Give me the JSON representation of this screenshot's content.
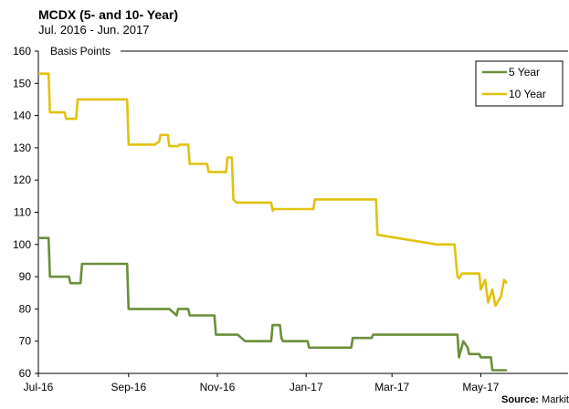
{
  "chart_data": {
    "type": "line",
    "title": "MCDX (5- and 10- Year)",
    "subtitle": "Jul. 2016 - Jun. 2017",
    "ylabel": "Basis Points",
    "xlabel": "",
    "ylim": [
      60,
      160
    ],
    "yticks": [
      60,
      70,
      80,
      90,
      100,
      110,
      120,
      130,
      140,
      150,
      160
    ],
    "xlim": [
      "2016-07-01",
      "2017-06-30"
    ],
    "xticks": [
      {
        "date": "2016-07-01",
        "label": "Jul-16"
      },
      {
        "date": "2016-09-01",
        "label": "Sep-16"
      },
      {
        "date": "2016-11-01",
        "label": "Nov-16"
      },
      {
        "date": "2017-01-01",
        "label": "Jan-17"
      },
      {
        "date": "2017-03-01",
        "label": "Mar-17"
      },
      {
        "date": "2017-05-01",
        "label": "May-17"
      }
    ],
    "grid": false,
    "legend_position": "top-right",
    "series": [
      {
        "name": "5 Year",
        "color": "#6b8e3a",
        "points": [
          [
            "2016-07-01",
            102
          ],
          [
            "2016-07-08",
            102
          ],
          [
            "2016-07-09",
            90
          ],
          [
            "2016-07-22",
            90
          ],
          [
            "2016-07-23",
            88
          ],
          [
            "2016-07-30",
            88
          ],
          [
            "2016-07-31",
            94
          ],
          [
            "2016-08-31",
            94
          ],
          [
            "2016-09-01",
            80
          ],
          [
            "2016-09-29",
            80
          ],
          [
            "2016-10-04",
            78
          ],
          [
            "2016-10-05",
            80
          ],
          [
            "2016-10-12",
            80
          ],
          [
            "2016-10-13",
            78
          ],
          [
            "2016-10-30",
            78
          ],
          [
            "2016-10-31",
            72
          ],
          [
            "2016-11-15",
            72
          ],
          [
            "2016-11-20",
            70
          ],
          [
            "2016-12-08",
            70
          ],
          [
            "2016-12-09",
            75
          ],
          [
            "2016-12-14",
            75
          ],
          [
            "2016-12-15",
            71
          ],
          [
            "2016-12-16",
            70
          ],
          [
            "2017-01-02",
            70
          ],
          [
            "2017-01-03",
            68
          ],
          [
            "2017-01-05",
            68
          ],
          [
            "2017-01-06",
            68
          ],
          [
            "2017-02-01",
            68
          ],
          [
            "2017-02-02",
            71
          ],
          [
            "2017-02-15",
            71
          ],
          [
            "2017-02-16",
            72
          ],
          [
            "2017-04-15",
            72
          ],
          [
            "2017-04-16",
            65
          ],
          [
            "2017-04-19",
            70
          ],
          [
            "2017-04-22",
            68
          ],
          [
            "2017-04-23",
            66
          ],
          [
            "2017-04-30",
            66
          ],
          [
            "2017-05-01",
            65
          ],
          [
            "2017-05-08",
            65
          ],
          [
            "2017-05-09",
            61
          ],
          [
            "2017-05-19",
            61
          ]
        ]
      },
      {
        "name": "10 Year",
        "color": "#e1c20f",
        "points": [
          [
            "2016-07-01",
            153
          ],
          [
            "2016-07-08",
            153
          ],
          [
            "2016-07-09",
            141
          ],
          [
            "2016-07-19",
            141
          ],
          [
            "2016-07-20",
            139
          ],
          [
            "2016-07-27",
            139
          ],
          [
            "2016-07-28",
            145
          ],
          [
            "2016-08-31",
            145
          ],
          [
            "2016-09-01",
            131
          ],
          [
            "2016-09-19",
            131
          ],
          [
            "2016-09-22",
            132
          ],
          [
            "2016-09-23",
            134
          ],
          [
            "2016-09-28",
            134
          ],
          [
            "2016-09-29",
            130.5
          ],
          [
            "2016-10-05",
            130.5
          ],
          [
            "2016-10-06",
            131
          ],
          [
            "2016-10-12",
            131
          ],
          [
            "2016-10-13",
            125
          ],
          [
            "2016-10-25",
            125
          ],
          [
            "2016-10-26",
            122.5
          ],
          [
            "2016-11-07",
            122.5
          ],
          [
            "2016-11-08",
            127
          ],
          [
            "2016-11-11",
            127
          ],
          [
            "2016-11-12",
            114
          ],
          [
            "2016-11-14",
            113
          ],
          [
            "2016-12-08",
            113
          ],
          [
            "2016-12-09",
            110.5
          ],
          [
            "2016-12-10",
            111
          ],
          [
            "2017-01-06",
            111
          ],
          [
            "2017-01-07",
            114
          ],
          [
            "2017-02-18",
            114
          ],
          [
            "2017-02-19",
            103
          ],
          [
            "2017-04-01",
            100
          ],
          [
            "2017-04-13",
            100
          ],
          [
            "2017-04-15",
            90
          ],
          [
            "2017-04-16",
            89.5
          ],
          [
            "2017-04-18",
            91
          ],
          [
            "2017-04-30",
            91
          ],
          [
            "2017-05-01",
            86
          ],
          [
            "2017-05-04",
            89
          ],
          [
            "2017-05-06",
            82
          ],
          [
            "2017-05-09",
            86
          ],
          [
            "2017-05-11",
            81
          ],
          [
            "2017-05-15",
            84
          ],
          [
            "2017-05-17",
            89
          ],
          [
            "2017-05-19",
            88
          ]
        ]
      }
    ],
    "source_label": "Source:",
    "source_value": "Markit"
  }
}
